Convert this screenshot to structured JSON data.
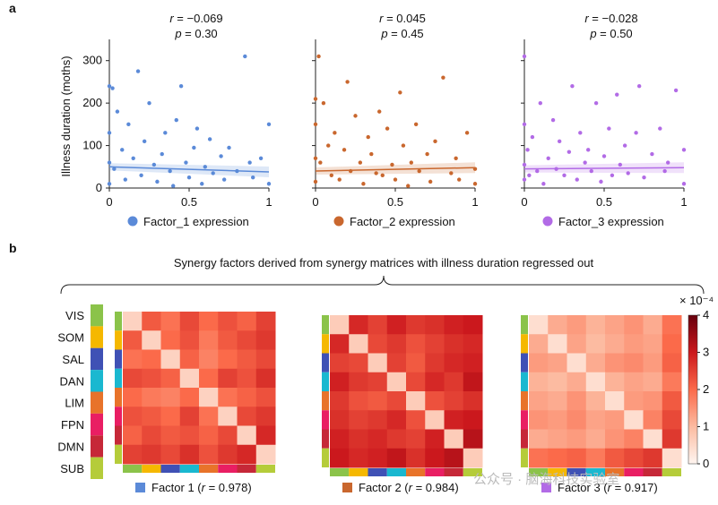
{
  "panel_a": {
    "label": "a",
    "ylabel": "Illness duration (moths)",
    "ylim": [
      0,
      350
    ],
    "yticks": [
      0,
      100,
      200,
      300
    ],
    "xlim": [
      0,
      1
    ],
    "xticks": [
      0,
      0.5,
      1
    ],
    "x": [
      0,
      0,
      0,
      0,
      0.02,
      0.03,
      0.05,
      0.08,
      0.1,
      0.12,
      0.15,
      0.18,
      0.2,
      0.22,
      0.25,
      0.28,
      0.3,
      0.33,
      0.35,
      0.38,
      0.4,
      0.42,
      0.45,
      0.48,
      0.5,
      0.53,
      0.55,
      0.58,
      0.6,
      0.63,
      0.65,
      0.7,
      0.72,
      0.75,
      0.8,
      0.85,
      0.88,
      0.9,
      0.95,
      1,
      1
    ],
    "charts": [
      {
        "type": "scatter",
        "color": "#5b8ad8",
        "legend": "Factor_1 expression",
        "r": {
          "symbol": "r",
          "text": " = −0.069"
        },
        "p": {
          "symbol": "p",
          "text": " = 0.30"
        },
        "fit": [
          50,
          38
        ],
        "y": [
          240,
          130,
          60,
          10,
          235,
          45,
          180,
          90,
          20,
          150,
          70,
          275,
          30,
          110,
          200,
          55,
          15,
          80,
          130,
          40,
          5,
          160,
          240,
          60,
          25,
          95,
          140,
          10,
          50,
          115,
          35,
          75,
          20,
          95,
          40,
          310,
          60,
          25,
          70,
          150,
          10
        ]
      },
      {
        "type": "scatter",
        "color": "#c9672e",
        "legend": "Factor_2 expression",
        "r": {
          "symbol": "r",
          "text": " = 0.045"
        },
        "p": {
          "symbol": "p",
          "text": " = 0.45"
        },
        "fit": [
          40,
          48
        ],
        "y": [
          210,
          150,
          70,
          15,
          310,
          60,
          200,
          100,
          30,
          130,
          20,
          90,
          250,
          40,
          170,
          60,
          10,
          120,
          80,
          35,
          180,
          30,
          140,
          55,
          20,
          225,
          100,
          5,
          60,
          150,
          40,
          80,
          15,
          110,
          260,
          35,
          70,
          20,
          130,
          45,
          10
        ]
      },
      {
        "type": "scatter",
        "color": "#b26be6",
        "legend": "Factor_3 expression",
        "r": {
          "symbol": "r",
          "text": " = −0.028"
        },
        "p": {
          "symbol": "p",
          "text": " = 0.50"
        },
        "fit": [
          45,
          48
        ],
        "y": [
          310,
          150,
          55,
          20,
          90,
          30,
          120,
          40,
          200,
          10,
          70,
          160,
          45,
          110,
          30,
          85,
          240,
          20,
          130,
          60,
          90,
          40,
          200,
          15,
          75,
          140,
          30,
          220,
          55,
          100,
          35,
          130,
          240,
          25,
          80,
          140,
          40,
          60,
          230,
          90,
          10
        ]
      }
    ]
  },
  "panel_b": {
    "label": "b",
    "title": "Synergy factors derived from synergy matrices with illness duration regressed out",
    "networks": [
      {
        "name": "VIS",
        "color": "#8bc34a"
      },
      {
        "name": "SOM",
        "color": "#f5b800"
      },
      {
        "name": "SAL",
        "color": "#3f51b5"
      },
      {
        "name": "DAN",
        "color": "#1ab8d0"
      },
      {
        "name": "LIM",
        "color": "#e8732a"
      },
      {
        "name": "FPN",
        "color": "#e91e63"
      },
      {
        "name": "DMN",
        "color": "#c62838"
      },
      {
        "name": "SUB",
        "color": "#b5cc3a"
      }
    ],
    "colorbar": {
      "scale": "× 10⁻⁴",
      "lim": [
        0,
        4
      ],
      "ticks": [
        0,
        1,
        2,
        3,
        4
      ]
    },
    "heatmaps": [
      {
        "type": "heatmap",
        "color": "#5b8ad8",
        "caption": {
          "pre": "Factor 1 (",
          "symbol": "r",
          "post": " = 0.978)"
        },
        "matrix": [
          [
            0.6,
            2.2,
            1.9,
            2.4,
            2.0,
            2.3,
            2.1,
            2.5
          ],
          [
            2.2,
            0.6,
            2.0,
            2.3,
            1.8,
            2.2,
            2.4,
            2.6
          ],
          [
            1.9,
            2.0,
            0.6,
            2.1,
            1.7,
            2.0,
            2.2,
            2.4
          ],
          [
            2.4,
            2.3,
            2.1,
            0.6,
            2.0,
            2.5,
            2.3,
            2.7
          ],
          [
            2.0,
            1.8,
            1.7,
            2.0,
            0.6,
            1.9,
            2.1,
            2.3
          ],
          [
            2.3,
            2.2,
            2.0,
            2.5,
            1.9,
            0.6,
            2.4,
            2.6
          ],
          [
            2.1,
            2.4,
            2.2,
            2.3,
            2.1,
            2.4,
            0.6,
            2.8
          ],
          [
            2.5,
            2.6,
            2.4,
            2.7,
            2.3,
            2.6,
            2.8,
            0.6
          ]
        ]
      },
      {
        "type": "heatmap",
        "color": "#c9672e",
        "caption": {
          "pre": "Factor 2 (",
          "symbol": "r",
          "post": " = 0.984)"
        },
        "matrix": [
          [
            0.7,
            2.8,
            2.5,
            2.9,
            2.6,
            2.7,
            2.9,
            3.0
          ],
          [
            2.8,
            0.7,
            2.4,
            2.6,
            2.3,
            2.5,
            2.7,
            2.8
          ],
          [
            2.5,
            2.4,
            0.7,
            2.5,
            2.2,
            2.6,
            2.8,
            2.9
          ],
          [
            2.9,
            2.6,
            2.5,
            0.7,
            2.4,
            2.8,
            2.6,
            3.1
          ],
          [
            2.6,
            2.3,
            2.2,
            2.4,
            0.7,
            2.3,
            2.5,
            2.7
          ],
          [
            2.7,
            2.5,
            2.6,
            2.8,
            2.3,
            0.7,
            2.9,
            3.0
          ],
          [
            2.9,
            2.7,
            2.8,
            2.6,
            2.5,
            2.9,
            0.7,
            3.2
          ],
          [
            3.0,
            2.8,
            2.9,
            3.1,
            2.7,
            3.0,
            3.2,
            0.7
          ]
        ]
      },
      {
        "type": "heatmap",
        "color": "#b26be6",
        "caption": {
          "pre": "Factor 3 (",
          "symbol": "r",
          "post": " = 0.917)"
        },
        "matrix": [
          [
            0.4,
            1.2,
            1.4,
            1.1,
            1.3,
            1.5,
            1.2,
            1.9
          ],
          [
            1.2,
            0.4,
            1.3,
            1.0,
            1.2,
            1.4,
            1.3,
            2.0
          ],
          [
            1.4,
            1.3,
            0.4,
            1.2,
            1.5,
            1.6,
            1.4,
            2.1
          ],
          [
            1.1,
            1.0,
            1.2,
            0.4,
            1.1,
            1.3,
            1.2,
            1.8
          ],
          [
            1.3,
            1.2,
            1.5,
            1.1,
            0.4,
            1.4,
            1.5,
            2.2
          ],
          [
            1.5,
            1.4,
            1.6,
            1.3,
            1.4,
            0.4,
            1.7,
            2.4
          ],
          [
            1.2,
            1.3,
            1.4,
            1.2,
            1.5,
            1.7,
            0.4,
            2.6
          ],
          [
            1.9,
            2.0,
            2.1,
            1.8,
            2.2,
            2.4,
            2.6,
            0.4
          ]
        ]
      }
    ]
  },
  "watermark": "公众号 · 脑海科技实验室"
}
